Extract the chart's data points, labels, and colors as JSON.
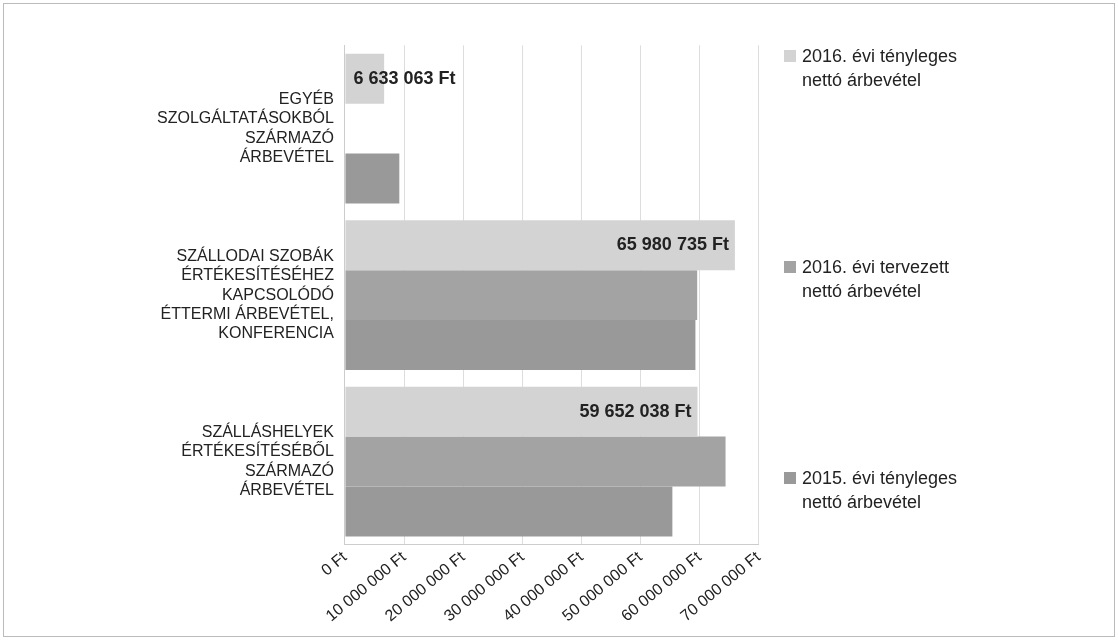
{
  "chart_data": {
    "type": "bar",
    "orientation": "horizontal",
    "categories": [
      "EGYÉB SZOLGÁLTATÁSOKBÓL SZÁRMAZÓ ÁRBEVÉTEL",
      "SZÁLLODAI SZOBÁK ÉRTÉKESÍTÉSÉHEZ KAPCSOLÓDÓ ÉTTERMI ÁRBEVÉTEL, KONFERENCIA",
      "SZÁLLÁSHELYEK ÉRTÉKESÍTÉSÉBŐL SZÁRMAZÓ ÁRBEVÉTEL"
    ],
    "series": [
      {
        "name": "2016. évi tényleges nettó árbevétel",
        "color": "#d3d3d3",
        "values": [
          6633063,
          65980735,
          59652038
        ],
        "value_labels": [
          "6 633 063 Ft",
          "65 980 735 Ft",
          "59 652 038 Ft"
        ]
      },
      {
        "name": "2016. évi tervezett nettó árbevétel",
        "color": "#a3a3a3",
        "values": [
          null,
          59600000,
          64400000
        ]
      },
      {
        "name": "2015. évi tényleges nettó árbevétel",
        "color": "#999999",
        "values": [
          9200000,
          59300000,
          55400000
        ]
      }
    ],
    "xlim": [
      0,
      70000000
    ],
    "xticks": [
      {
        "value": 0,
        "label": "0 Ft"
      },
      {
        "value": 10000000,
        "label": "10 000 000 Ft"
      },
      {
        "value": 20000000,
        "label": "20 000 000 Ft"
      },
      {
        "value": 30000000,
        "label": "30 000 000 Ft"
      },
      {
        "value": 40000000,
        "label": "40 000 000 Ft"
      },
      {
        "value": 50000000,
        "label": "50 000 000 Ft"
      },
      {
        "value": 60000000,
        "label": "60 000 000 Ft"
      },
      {
        "value": 70000000,
        "label": "70 000 000 Ft"
      }
    ],
    "grid": "x",
    "legend": "right"
  }
}
